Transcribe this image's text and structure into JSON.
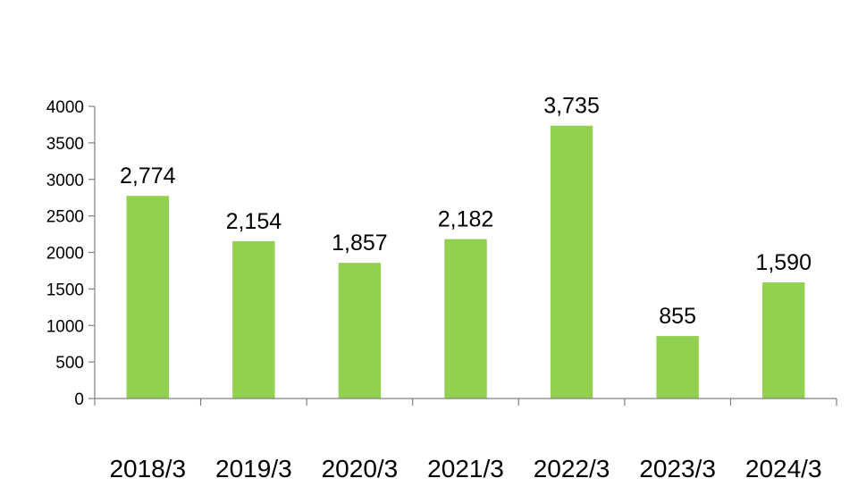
{
  "chart_data": {
    "type": "bar",
    "categories": [
      "2018/3",
      "2019/3",
      "2020/3",
      "2021/3",
      "2022/3",
      "2023/3",
      "2024/3"
    ],
    "values": [
      2774,
      2154,
      1857,
      2182,
      3735,
      855,
      1590
    ],
    "data_labels": [
      "2,774",
      "2,154",
      "1,857",
      "2,182",
      "3,735",
      "855",
      "1,590"
    ],
    "ylim": [
      0,
      4000
    ],
    "yticks": [
      0,
      500,
      1000,
      1500,
      2000,
      2500,
      3000,
      3500,
      4000
    ],
    "ytick_labels": [
      "0",
      "500",
      "1000",
      "1500",
      "2000",
      "2500",
      "3000",
      "3500",
      "4000"
    ],
    "title": "",
    "xlabel": "",
    "ylabel": "",
    "grid": false,
    "legend": "none",
    "colors": {
      "bar": "#92d050",
      "axis": "#808080",
      "text": "#000000"
    }
  }
}
